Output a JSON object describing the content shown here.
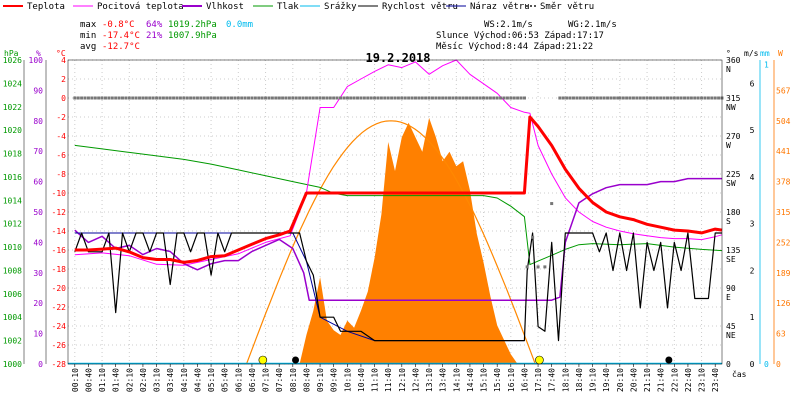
{
  "chart_data": {
    "type": "line",
    "title": "19.2.2018",
    "legend": [
      {
        "label": "Teplota",
        "color": "#ff0000"
      },
      {
        "label": "Pocitová teplota",
        "color": "#ff00ff"
      },
      {
        "label": "Vlhkost",
        "color": "#9900cc"
      },
      {
        "label": "Tlak",
        "color": "#009900"
      },
      {
        "label": "Srážky",
        "color": "#00bbee"
      },
      {
        "label": "Rychlost větru",
        "color": "#000000"
      },
      {
        "label": "Náraz větru",
        "color": "#000099"
      },
      {
        "label": "Směr větru",
        "color": "#555555"
      }
    ],
    "stats": {
      "max_label": "max",
      "max_temp": "-0.8°C",
      "max_hum": "64%",
      "max_press": "1019.2hPa",
      "max_rain": "0.0mm",
      "min_label": "min",
      "min_temp": "-17.4°C",
      "min_hum": "21%",
      "min_press": "1007.9hPa",
      "avg_label": "avg",
      "avg_temp": "-12.7°C",
      "ws": "WS:2.1m/s",
      "wg": "WG:2.1m/s",
      "sun": "Slunce Východ:06:53  Západ:17:17",
      "moon": "Měsíc  Východ:8:44   Západ:21:22"
    },
    "axes": {
      "hpa": {
        "title": "hPa",
        "min": 1000,
        "max": 1026,
        "ticks": [
          1000,
          1002,
          1004,
          1006,
          1008,
          1010,
          1012,
          1014,
          1016,
          1018,
          1020,
          1022,
          1024,
          1026
        ],
        "color": "#009900"
      },
      "hum": {
        "title": "%",
        "min": 0,
        "max": 100,
        "ticks": [
          0,
          10,
          20,
          30,
          40,
          50,
          60,
          70,
          80,
          90,
          100
        ],
        "color": "#9900cc"
      },
      "temp": {
        "title": "°C",
        "min": -28,
        "max": 4,
        "ticks": [
          -28,
          -26,
          -24,
          -22,
          -20,
          -18,
          -16,
          -14,
          -12,
          -10,
          -8,
          -6,
          -4,
          -2,
          0,
          2,
          4
        ],
        "color": "#ff0000"
      },
      "dir": {
        "title": "°",
        "ticks": [
          {
            "v": 0,
            "l": "0",
            "s": ""
          },
          {
            "v": 45,
            "l": "45",
            "s": "NE"
          },
          {
            "v": 90,
            "l": "90",
            "s": "E"
          },
          {
            "v": 135,
            "l": "135",
            "s": "SE"
          },
          {
            "v": 180,
            "l": "180",
            "s": "S"
          },
          {
            "v": 225,
            "l": "225",
            "s": "SW"
          },
          {
            "v": 270,
            "l": "270",
            "s": "W"
          },
          {
            "v": 315,
            "l": "315",
            "s": "NW"
          },
          {
            "v": 360,
            "l": "360",
            "s": "N"
          }
        ],
        "min": 0,
        "max": 360
      },
      "ms": {
        "title": "m/s",
        "min": 0,
        "max": 6.5,
        "ticks": [
          0,
          1,
          2,
          3,
          4,
          5,
          6
        ],
        "color": "#000000"
      },
      "mm": {
        "title": "mm",
        "color": "#00bbee",
        "ticks": [
          0,
          1
        ],
        "ticks_v": [
          0,
          6.4
        ]
      },
      "wm": {
        "title": "W",
        "min": 0,
        "max": 630,
        "ticks": [
          0,
          63,
          126,
          189,
          252,
          315,
          378,
          441,
          504,
          567
        ],
        "color": "#ff7700"
      },
      "x_title": "čas"
    },
    "x": [
      "00:10",
      "00:40",
      "01:10",
      "01:40",
      "02:10",
      "02:40",
      "03:10",
      "03:40",
      "04:10",
      "04:40",
      "05:10",
      "05:40",
      "06:10",
      "06:40",
      "07:10",
      "07:40",
      "08:10",
      "08:40",
      "09:10",
      "09:40",
      "10:10",
      "10:40",
      "11:10",
      "11:40",
      "12:10",
      "12:40",
      "13:10",
      "13:40",
      "14:10",
      "14:40",
      "15:10",
      "15:40",
      "16:10",
      "16:40",
      "17:10",
      "17:40",
      "18:10",
      "18:40",
      "19:10",
      "19:40",
      "20:10",
      "20:40",
      "21:10",
      "21:40",
      "22:10",
      "22:40",
      "23:10",
      "23:40"
    ],
    "series": {
      "teplota": [
        [
          0,
          -16
        ],
        [
          1,
          -16
        ],
        [
          2,
          -15.9
        ],
        [
          3,
          -15.8
        ],
        [
          4,
          -16.2
        ],
        [
          5,
          -16.8
        ],
        [
          6,
          -17
        ],
        [
          7,
          -17
        ],
        [
          8,
          -17.3
        ],
        [
          9,
          -17.1
        ],
        [
          10,
          -16.7
        ],
        [
          11,
          -16.6
        ],
        [
          12,
          -16
        ],
        [
          13,
          -15.4
        ],
        [
          14,
          -14.8
        ],
        [
          15,
          -14.4
        ],
        [
          15.8,
          -14
        ],
        [
          16.4,
          -12
        ],
        [
          17,
          -10
        ],
        [
          19,
          -10
        ],
        [
          22,
          -10
        ],
        [
          26,
          -10
        ],
        [
          30,
          -10
        ],
        [
          33,
          -10
        ],
        [
          33.4,
          -2
        ],
        [
          34,
          -3
        ],
        [
          35,
          -5
        ],
        [
          36,
          -7.5
        ],
        [
          37,
          -9.5
        ],
        [
          38,
          -11
        ],
        [
          39,
          -12
        ],
        [
          40,
          -12.5
        ],
        [
          41,
          -12.8
        ],
        [
          42,
          -13.3
        ],
        [
          43,
          -13.6
        ],
        [
          44,
          -13.9
        ],
        [
          45,
          -14
        ],
        [
          46,
          -14.2
        ],
        [
          47,
          -13.8
        ],
        [
          47.5,
          -13.9
        ]
      ],
      "pocitova": [
        [
          0,
          -16.5
        ],
        [
          2,
          -16.3
        ],
        [
          4,
          -16.6
        ],
        [
          6,
          -17.5
        ],
        [
          8,
          -17.6
        ],
        [
          10,
          -17
        ],
        [
          12,
          -16.4
        ],
        [
          14,
          -15.2
        ],
        [
          15.8,
          -14.5
        ],
        [
          16.4,
          -12.3
        ],
        [
          17,
          -10
        ],
        [
          18,
          -1
        ],
        [
          19,
          -1
        ],
        [
          20,
          1.2
        ],
        [
          21,
          2
        ],
        [
          22,
          2.8
        ],
        [
          23,
          3.5
        ],
        [
          24,
          3.2
        ],
        [
          25,
          3.8
        ],
        [
          26,
          2.5
        ],
        [
          27,
          3.4
        ],
        [
          28,
          4
        ],
        [
          29,
          2.5
        ],
        [
          30,
          1.5
        ],
        [
          31,
          0.5
        ],
        [
          32,
          -1
        ],
        [
          33,
          -1.5
        ],
        [
          33.4,
          -1.6
        ],
        [
          34,
          -5
        ],
        [
          35,
          -8
        ],
        [
          36,
          -10.5
        ],
        [
          37,
          -12
        ],
        [
          38,
          -13
        ],
        [
          39,
          -13.6
        ],
        [
          40,
          -14
        ],
        [
          41,
          -14.3
        ],
        [
          42,
          -14.5
        ],
        [
          43,
          -14.7
        ],
        [
          44,
          -14.8
        ],
        [
          45,
          -14.8
        ],
        [
          46,
          -14.9
        ],
        [
          47,
          -14.6
        ],
        [
          47.5,
          -14.4
        ]
      ],
      "vlhkost": [
        [
          0,
          44
        ],
        [
          1,
          40
        ],
        [
          2,
          42
        ],
        [
          3,
          38
        ],
        [
          4,
          39
        ],
        [
          5,
          36
        ],
        [
          6,
          38
        ],
        [
          7,
          37
        ],
        [
          8,
          33
        ],
        [
          9,
          31
        ],
        [
          10,
          33
        ],
        [
          11,
          34
        ],
        [
          12,
          34
        ],
        [
          13,
          37
        ],
        [
          14,
          39
        ],
        [
          15,
          41
        ],
        [
          16,
          38
        ],
        [
          16.8,
          30
        ],
        [
          17.2,
          21
        ],
        [
          20,
          21
        ],
        [
          25,
          21
        ],
        [
          30,
          21
        ],
        [
          33,
          21
        ],
        [
          34,
          21
        ],
        [
          35,
          21
        ],
        [
          35.6,
          22
        ],
        [
          36,
          40
        ],
        [
          37,
          53
        ],
        [
          38,
          56
        ],
        [
          39,
          58
        ],
        [
          40,
          59
        ],
        [
          41,
          59
        ],
        [
          42,
          59
        ],
        [
          43,
          60
        ],
        [
          44,
          60
        ],
        [
          45,
          61
        ],
        [
          46,
          61
        ],
        [
          47,
          61
        ],
        [
          47.5,
          61
        ]
      ],
      "tlak": [
        [
          0,
          1018.7
        ],
        [
          2,
          1018.4
        ],
        [
          4,
          1018.1
        ],
        [
          6,
          1017.8
        ],
        [
          8,
          1017.5
        ],
        [
          10,
          1017.1
        ],
        [
          12,
          1016.6
        ],
        [
          14,
          1016.1
        ],
        [
          16,
          1015.6
        ],
        [
          18,
          1015.1
        ],
        [
          19,
          1014.6
        ],
        [
          20,
          1014.4
        ],
        [
          22,
          1014.4
        ],
        [
          24,
          1014.4
        ],
        [
          28,
          1014.4
        ],
        [
          30,
          1014.4
        ],
        [
          31,
          1014.2
        ],
        [
          32,
          1013.5
        ],
        [
          33,
          1012.6
        ],
        [
          33.4,
          1008.5
        ],
        [
          34,
          1008.8
        ],
        [
          35,
          1009.3
        ],
        [
          36,
          1009.8
        ],
        [
          37,
          1010.2
        ],
        [
          38,
          1010.3
        ],
        [
          40,
          1010.2
        ],
        [
          42,
          1010.3
        ],
        [
          44,
          1010
        ],
        [
          46,
          1009.8
        ],
        [
          47.5,
          1009.7
        ]
      ],
      "rychlost": [
        [
          0,
          2.4
        ],
        [
          0.5,
          2.8
        ],
        [
          1,
          2.4
        ],
        [
          1.5,
          2.4
        ],
        [
          2,
          2.4
        ],
        [
          2.5,
          2.8
        ],
        [
          3,
          1.1
        ],
        [
          3.5,
          2.8
        ],
        [
          4,
          2.4
        ],
        [
          4.5,
          2.8
        ],
        [
          5,
          2.8
        ],
        [
          5.5,
          2.4
        ],
        [
          6,
          2.8
        ],
        [
          6.5,
          2.8
        ],
        [
          7,
          1.7
        ],
        [
          7.5,
          2.8
        ],
        [
          8,
          2.8
        ],
        [
          8.5,
          2.4
        ],
        [
          9,
          2.8
        ],
        [
          9.5,
          2.8
        ],
        [
          10,
          1.9
        ],
        [
          10.5,
          2.8
        ],
        [
          11,
          2.4
        ],
        [
          11.5,
          2.8
        ],
        [
          12,
          2.8
        ],
        [
          13,
          2.8
        ],
        [
          14,
          2.8
        ],
        [
          15,
          2.8
        ],
        [
          16,
          2.8
        ],
        [
          16.5,
          2.8
        ],
        [
          17,
          2.2
        ],
        [
          17.5,
          1.9
        ],
        [
          18,
          1
        ],
        [
          19,
          1
        ],
        [
          19.5,
          0.7
        ],
        [
          21,
          0.7
        ],
        [
          22,
          0.5
        ],
        [
          25,
          0.5
        ],
        [
          28,
          0.5
        ],
        [
          30,
          0.5
        ],
        [
          32,
          0.5
        ],
        [
          33,
          0.5
        ],
        [
          33.2,
          2
        ],
        [
          33.6,
          2.8
        ],
        [
          34,
          0.8
        ],
        [
          34.5,
          0.7
        ],
        [
          35,
          2.6
        ],
        [
          35.5,
          0.5
        ],
        [
          36,
          2.8
        ],
        [
          37,
          2.8
        ],
        [
          38,
          2.8
        ],
        [
          38.5,
          2.4
        ],
        [
          39,
          2.8
        ],
        [
          39.5,
          2
        ],
        [
          40,
          2.8
        ],
        [
          40.5,
          2
        ],
        [
          41,
          2.8
        ],
        [
          41.5,
          1.2
        ],
        [
          42,
          2.6
        ],
        [
          42.5,
          2
        ],
        [
          43,
          2.6
        ],
        [
          43.5,
          1.2
        ],
        [
          44,
          2.6
        ],
        [
          44.5,
          2
        ],
        [
          45,
          2.8
        ],
        [
          45.5,
          1.4
        ],
        [
          46,
          1.4
        ],
        [
          46.5,
          1.4
        ],
        [
          47,
          2.8
        ],
        [
          47.5,
          2.8
        ]
      ],
      "naraz": [
        [
          0,
          2.8
        ],
        [
          5,
          2.8
        ],
        [
          10,
          2.8
        ],
        [
          16,
          2.8
        ],
        [
          17,
          2.2
        ],
        [
          18,
          1
        ],
        [
          20,
          0.7
        ],
        [
          22,
          0.5
        ],
        [
          28,
          0.5
        ],
        [
          33,
          0.5
        ]
      ],
      "smer": [
        [
          0,
          315
        ],
        [
          5,
          315
        ],
        [
          10,
          315
        ],
        [
          15,
          315
        ],
        [
          20,
          315
        ],
        [
          25,
          315
        ],
        [
          30,
          315
        ],
        [
          33,
          315
        ],
        [
          33.2,
          115
        ],
        [
          33.6,
          150
        ],
        [
          34,
          115
        ],
        [
          34.5,
          115
        ],
        [
          35,
          190
        ],
        [
          35.6,
          315
        ],
        [
          40,
          315
        ],
        [
          45,
          315
        ],
        [
          47.5,
          315
        ]
      ],
      "solar": [
        [
          16.5,
          0
        ],
        [
          17,
          60
        ],
        [
          17.5,
          110
        ],
        [
          18,
          180
        ],
        [
          18.5,
          90
        ],
        [
          19,
          70
        ],
        [
          19.5,
          60
        ],
        [
          20,
          90
        ],
        [
          20.5,
          75
        ],
        [
          21,
          110
        ],
        [
          21.5,
          150
        ],
        [
          22,
          220
        ],
        [
          22.5,
          310
        ],
        [
          23,
          460
        ],
        [
          23.5,
          400
        ],
        [
          24,
          470
        ],
        [
          24.5,
          500
        ],
        [
          25,
          470
        ],
        [
          25.5,
          440
        ],
        [
          26,
          510
        ],
        [
          26.5,
          470
        ],
        [
          27,
          420
        ],
        [
          27.5,
          440
        ],
        [
          28,
          410
        ],
        [
          28.5,
          420
        ],
        [
          29,
          360
        ],
        [
          29.5,
          270
        ],
        [
          30,
          210
        ],
        [
          30.5,
          140
        ],
        [
          31,
          80
        ],
        [
          31.5,
          50
        ],
        [
          32,
          20
        ],
        [
          32.5,
          0
        ]
      ],
      "sun_curve_peak": 504,
      "sun_curve_range": [
        12.6,
        33.8
      ],
      "rain_mm": 0
    },
    "markers": {
      "sunrise_x": 13.8,
      "sunset_x": 34.1,
      "moon_x": [
        16.2,
        43.6
      ]
    }
  }
}
